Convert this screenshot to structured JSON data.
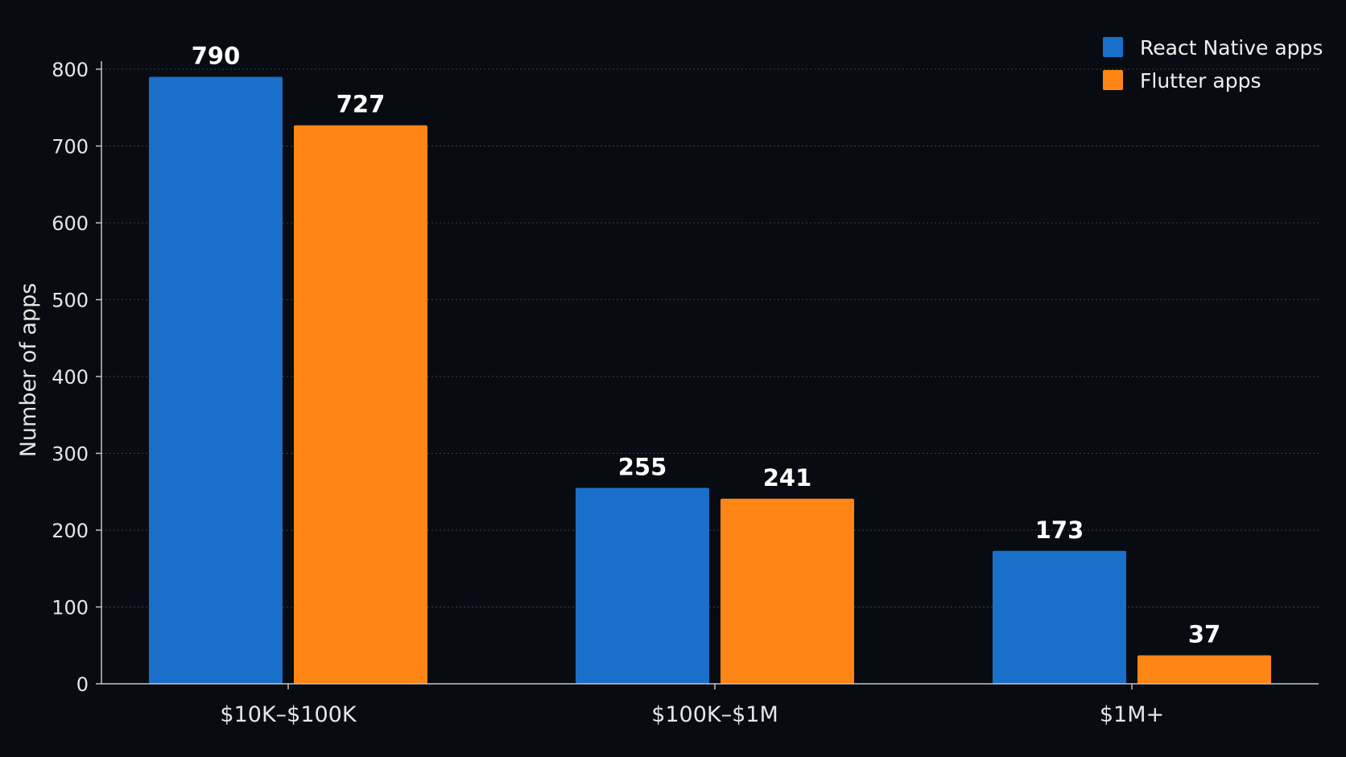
{
  "chart_data": {
    "type": "bar",
    "categories": [
      "$10K–$100K",
      "$100K–$1M",
      "$1M+"
    ],
    "series": [
      {
        "name": "React Native apps",
        "values": [
          790,
          255,
          173
        ],
        "color": "#1a6fca"
      },
      {
        "name": "Flutter apps",
        "values": [
          727,
          241,
          37
        ],
        "color": "#ff8514"
      }
    ],
    "title": "",
    "xlabel": "",
    "ylabel": "Number of apps",
    "ylim": [
      0,
      800
    ],
    "yticks": [
      0,
      100,
      200,
      300,
      400,
      500,
      600,
      700,
      800
    ],
    "grid": true,
    "legend": "top-right",
    "background": "#080c12"
  }
}
